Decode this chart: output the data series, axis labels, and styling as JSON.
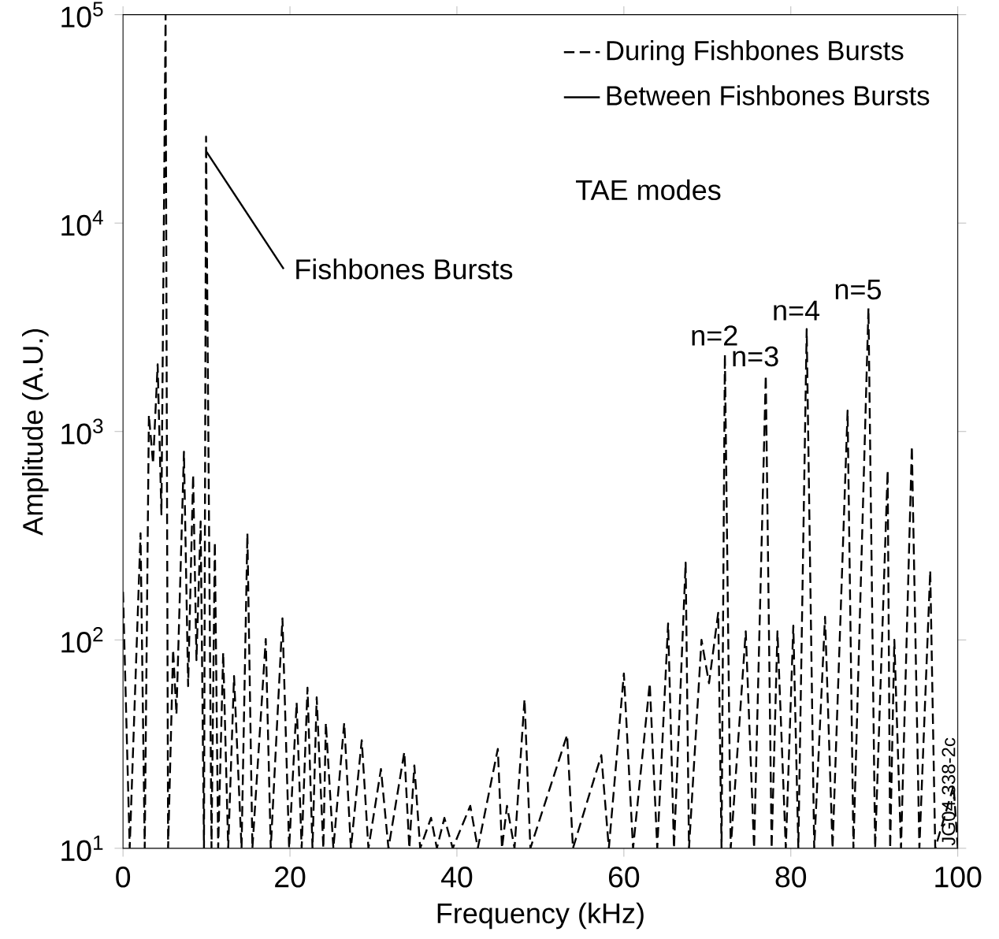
{
  "chart_data": {
    "type": "line",
    "xlabel": "Frequency (kHz)",
    "ylabel": "Amplitude (A.U.)",
    "xlim": [
      0,
      100
    ],
    "ylim": [
      10,
      100000
    ],
    "xticks": [
      0,
      20,
      40,
      60,
      80,
      100
    ],
    "yticks": [
      {
        "value": 10,
        "label": "10$^{1}$"
      },
      {
        "value": 100,
        "label": "10$^{2}$"
      },
      {
        "value": 1000,
        "label": "10$^{3}$"
      },
      {
        "value": 10000,
        "label": "10$^{4}$"
      },
      {
        "value": 100000,
        "label": "10$^{5}$"
      }
    ],
    "log": "y",
    "legend": "top right",
    "series": [
      {
        "name": "During Fishbones Bursts",
        "color": "#000000",
        "line_style": "dashed",
        "x": [
          0,
          0.8,
          2.1,
          2.6,
          3.1,
          3.6,
          4.15,
          4.6,
          5.1,
          5.4,
          6.0,
          6.4,
          7.3,
          7.8,
          8.4,
          8.8,
          9.3,
          9.7,
          9.95,
          10.6,
          11.0,
          11.4,
          12.0,
          12.6,
          13.3,
          14.2,
          14.9,
          15.5,
          17.1,
          17.7,
          19.1,
          19.9,
          20.8,
          21.4,
          22.1,
          22.7,
          23.2,
          24.0,
          24.3,
          25.2,
          26.5,
          27.3,
          28.6,
          29.4,
          30.9,
          31.8,
          33.7,
          34.3,
          34.9,
          35.6,
          36.9,
          37.6,
          38.5,
          39.5,
          41.6,
          42.5,
          44.9,
          45.4,
          46.0,
          46.9,
          48.1,
          48.8,
          53.2,
          53.9,
          57.3,
          58.2,
          60.0,
          61.1,
          63.1,
          64.0,
          65.3,
          66.0,
          67.4,
          67.8,
          69.3,
          70.2,
          71.3,
          71.7,
          72.1,
          72.8,
          74.6,
          75.6,
          77.0,
          77.7,
          78.4,
          79.4,
          80.3,
          80.9,
          81.9,
          82.8,
          84.1,
          85.0,
          86.8,
          87.5,
          89.3,
          90.1,
          91.6,
          91.9,
          92.4,
          93.2,
          94.5,
          95.4,
          96.7,
          97.3,
          99.5,
          100
        ],
        "values": [
          170,
          10,
          325,
          10,
          1200,
          700,
          2100,
          400,
          100000,
          10,
          90,
          44,
          800,
          60,
          620,
          80,
          370,
          10,
          26000,
          10,
          295,
          10,
          87,
          10,
          67,
          10,
          325,
          10,
          101,
          10,
          127,
          10,
          50,
          10,
          59,
          10,
          53,
          10,
          40,
          10,
          40,
          10,
          33,
          10,
          24,
          10,
          29,
          10,
          25,
          10,
          14,
          10,
          14,
          10,
          16,
          10,
          30,
          10,
          16,
          10,
          52,
          10,
          35,
          10,
          28,
          10,
          69,
          10,
          62,
          10,
          120,
          10,
          235,
          10,
          100,
          62,
          135,
          10,
          2350,
          10,
          110,
          10,
          1860,
          10,
          110,
          10,
          117,
          10,
          3100,
          10,
          129,
          10,
          1260,
          10,
          3900,
          10,
          650,
          10,
          100,
          10,
          850,
          10,
          215,
          10,
          20,
          10
        ]
      },
      {
        "name": "Between Fishbones Bursts",
        "color": "#000000",
        "line_style": "solid"
      }
    ],
    "annotations": [
      {
        "text": "Fishbones Bursts",
        "x": 10,
        "y": 22000
      },
      "TAE modes",
      {
        "text": "n=2",
        "x": 72.1,
        "y": 2350
      },
      {
        "text": "n=3",
        "x": 77.0,
        "y": 1860
      },
      {
        "text": "n=4",
        "x": 81.9,
        "y": 3100
      },
      {
        "text": "n=5",
        "x": 89.3,
        "y": 3900
      },
      "JG04.338-2c"
    ]
  }
}
